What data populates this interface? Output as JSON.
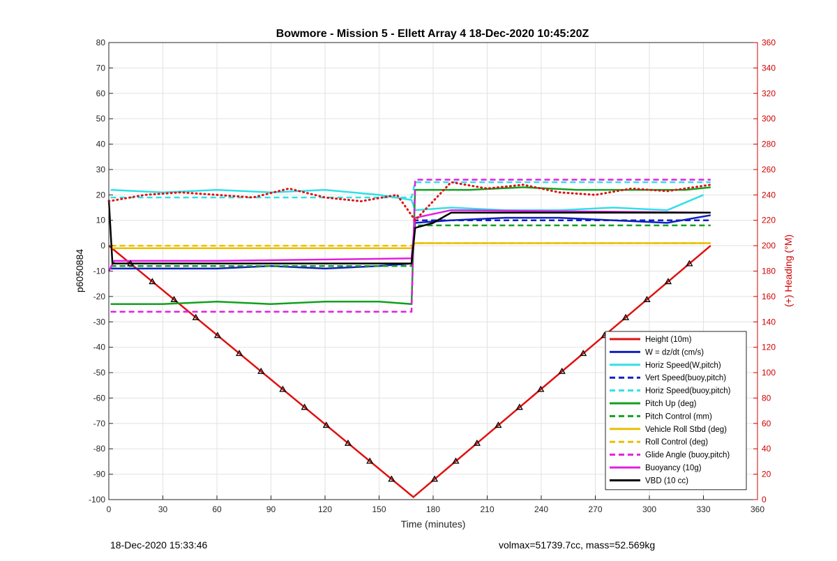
{
  "footer": {
    "timestamp": "18-Dec-2020 15:33:46",
    "summary": "volmax=51739.7cc, mass=52.569kg"
  },
  "chart_data": {
    "type": "line",
    "title": "Bowmore - Mission 5 - Ellett Array 4 18-Dec-2020 10:45:20Z",
    "xlabel": "Time (minutes)",
    "ylabel": "p6050884",
    "y2label": "(+) Heading (°M)",
    "xlim": [
      0,
      360
    ],
    "ylim": [
      -100,
      80
    ],
    "y2lim": [
      0,
      360
    ],
    "xticks": [
      0,
      30,
      60,
      90,
      120,
      150,
      180,
      210,
      240,
      270,
      300,
      330,
      360
    ],
    "yticks": [
      -100,
      -90,
      -80,
      -70,
      -60,
      -50,
      -40,
      -30,
      -20,
      -10,
      0,
      10,
      20,
      30,
      40,
      50,
      60,
      70,
      80
    ],
    "y2ticks": [
      0,
      20,
      40,
      60,
      80,
      100,
      120,
      140,
      160,
      180,
      200,
      220,
      240,
      260,
      280,
      300,
      320,
      340,
      360
    ],
    "grid": true,
    "legend_position": "bottom-right",
    "series": [
      {
        "name": "Height (10m)",
        "color": "#e01010",
        "style": "solid",
        "x": [
          0,
          169,
          334
        ],
        "y": [
          0,
          -99,
          0
        ]
      },
      {
        "name": "W = dz/dt (cm/s)",
        "color": "#1020c0",
        "style": "solid",
        "x": [
          1,
          30,
          60,
          90,
          120,
          150,
          168,
          170,
          190,
          220,
          250,
          280,
          310,
          334
        ],
        "y": [
          -9,
          -9,
          -9,
          -8,
          -9,
          -8,
          -7,
          9,
          10,
          11,
          11,
          10,
          9,
          12
        ]
      },
      {
        "name": "Horiz Speed(W,pitch)",
        "color": "#30e0e8",
        "style": "solid",
        "x": [
          1,
          30,
          60,
          90,
          120,
          150,
          168,
          170,
          190,
          220,
          250,
          280,
          310,
          330
        ],
        "y": [
          22,
          21,
          22,
          21,
          22,
          20,
          18,
          14,
          15,
          14,
          14,
          15,
          14,
          20
        ]
      },
      {
        "name": "Vert Speed(buoy,pitch)",
        "color": "#1020c0",
        "style": "dashed",
        "x": [
          1,
          168,
          170,
          334
        ],
        "y": [
          -8,
          -8,
          10,
          10
        ]
      },
      {
        "name": "Horiz Speed(buoy,pitch)",
        "color": "#30e0e8",
        "style": "dashed",
        "x": [
          1,
          168,
          170,
          334
        ],
        "y": [
          19,
          19,
          25,
          25
        ]
      },
      {
        "name": "Pitch Up (deg)",
        "color": "#10a020",
        "style": "solid",
        "x": [
          1,
          30,
          60,
          90,
          120,
          150,
          168,
          170,
          200,
          230,
          260,
          290,
          320,
          334
        ],
        "y": [
          -23,
          -23,
          -22,
          -23,
          -22,
          -22,
          -23,
          22,
          22,
          23,
          22,
          22,
          22,
          23
        ]
      },
      {
        "name": "Pitch Control (mm)",
        "color": "#10a020",
        "style": "dashed",
        "x": [
          1,
          168,
          170,
          334
        ],
        "y": [
          -8,
          -8,
          8,
          8
        ]
      },
      {
        "name": "Vehicle Roll Stbd (deg)",
        "color": "#e8c000",
        "style": "solid",
        "x": [
          1,
          168,
          170,
          334
        ],
        "y": [
          -1,
          -1,
          1,
          1
        ]
      },
      {
        "name": "Roll Control (deg)",
        "color": "#e8c000",
        "style": "dashed",
        "x": [
          1,
          168,
          170,
          334
        ],
        "y": [
          0,
          0,
          1,
          1
        ]
      },
      {
        "name": "Glide Angle (buoy,pitch)",
        "color": "#e020e0",
        "style": "dashed",
        "x": [
          1,
          168,
          170,
          334
        ],
        "y": [
          -26,
          -26,
          26,
          26
        ]
      },
      {
        "name": "Buoyancy (10g)",
        "color": "#e020e0",
        "style": "solid",
        "x": [
          0,
          3,
          60,
          168,
          170,
          190,
          334
        ],
        "y": [
          -10,
          -6,
          -6,
          -5,
          11,
          14,
          13
        ]
      },
      {
        "name": "VBD (10 cc)",
        "color": "#000000",
        "style": "solid",
        "x": [
          0,
          2,
          168,
          170,
          180,
          190,
          334
        ],
        "y": [
          18,
          -7,
          -7,
          7,
          9,
          13,
          13
        ]
      },
      {
        "name": "",
        "color": "#e01010",
        "style": "dotted",
        "axis": "right",
        "x": [
          0,
          20,
          40,
          60,
          80,
          100,
          120,
          140,
          160,
          170,
          190,
          210,
          230,
          250,
          270,
          290,
          310,
          334
        ],
        "y": [
          235,
          240,
          242,
          240,
          238,
          245,
          238,
          235,
          240,
          220,
          250,
          245,
          248,
          242,
          240,
          245,
          243,
          248
        ]
      }
    ]
  }
}
